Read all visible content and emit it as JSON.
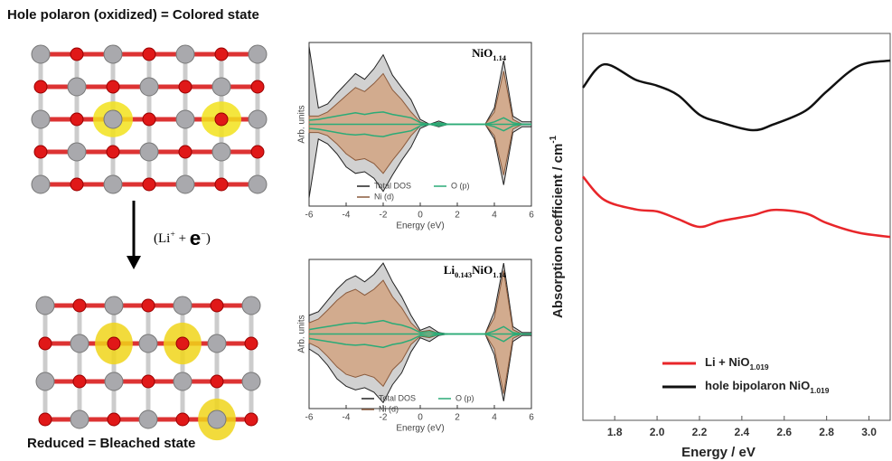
{
  "labels": {
    "top": "Hole polaron (oxidized) = Colored state",
    "bottom": "Reduced = Bleached state",
    "reaction": [
      {
        "text": "(Li"
      },
      {
        "text": "+",
        "sup": true
      },
      {
        "text": " + "
      },
      {
        "text": "e",
        "big": true
      },
      {
        "text": "−",
        "sup": true
      },
      {
        "text": ")"
      }
    ]
  },
  "chart_data": [
    {
      "type": "area",
      "title": [
        {
          "text": "NiO"
        },
        {
          "text": "1.14",
          "sub": true
        }
      ],
      "xlabel": "Energy (eV)",
      "ylabel": "Arb. units",
      "x": [
        -6,
        -5.5,
        -5,
        -4.5,
        -4,
        -3.5,
        -3,
        -2.5,
        -2,
        -1.5,
        -1,
        -0.5,
        0,
        0.5,
        1,
        1.5,
        2,
        2.5,
        3,
        3.5,
        4,
        4.5,
        5,
        5.5,
        6
      ],
      "xlim": [
        -6,
        6
      ],
      "xticks": [
        -6,
        -4,
        -2,
        0,
        2,
        4,
        6
      ],
      "ylim": [
        -1,
        1
      ],
      "series": [
        {
          "name": "Total DOS",
          "color": "#222222",
          "fill": "#c9c9c9",
          "values": [
            0.95,
            0.2,
            0.25,
            0.38,
            0.5,
            0.62,
            0.55,
            0.68,
            0.85,
            0.6,
            0.45,
            0.3,
            0.06,
            0,
            0.04,
            0,
            0,
            0,
            0,
            0,
            0.2,
            0.78,
            0.1,
            0.03,
            0.03
          ],
          "values_down": [
            -0.9,
            -0.18,
            -0.24,
            -0.36,
            -0.52,
            -0.6,
            -0.58,
            -0.66,
            -0.82,
            -0.62,
            -0.44,
            -0.28,
            -0.05,
            0,
            -0.03,
            0,
            0,
            0,
            0,
            0,
            -0.18,
            -0.74,
            -0.1,
            -0.03,
            -0.03
          ]
        },
        {
          "name": "Ni (d)",
          "color": "#8a5a3c",
          "fill": "#d2a582",
          "values": [
            0.1,
            0.1,
            0.15,
            0.25,
            0.35,
            0.45,
            0.4,
            0.5,
            0.62,
            0.42,
            0.3,
            0.15,
            0.03,
            0,
            0.01,
            0,
            0,
            0,
            0,
            0,
            0.15,
            0.65,
            0.06,
            0,
            0
          ],
          "values_down": [
            -0.1,
            -0.1,
            -0.14,
            -0.24,
            -0.36,
            -0.44,
            -0.42,
            -0.48,
            -0.6,
            -0.44,
            -0.3,
            -0.14,
            -0.02,
            0,
            -0.01,
            0,
            0,
            0,
            0,
            0,
            -0.14,
            -0.62,
            -0.06,
            0,
            0
          ]
        },
        {
          "name": "O (p)",
          "color": "#2bab77",
          "fill": "none",
          "values": [
            0.05,
            0.06,
            0.08,
            0.1,
            0.12,
            0.14,
            0.12,
            0.14,
            0.15,
            0.12,
            0.1,
            0.08,
            0.02,
            0,
            0.02,
            0,
            0,
            0,
            0,
            0,
            0.03,
            0.08,
            0.02,
            0,
            0
          ],
          "values_down": [
            -0.05,
            -0.06,
            -0.08,
            -0.1,
            -0.12,
            -0.13,
            -0.12,
            -0.14,
            -0.15,
            -0.12,
            -0.1,
            -0.08,
            -0.02,
            0,
            -0.02,
            0,
            0,
            0,
            0,
            0,
            -0.03,
            -0.08,
            -0.02,
            0,
            0
          ]
        }
      ]
    },
    {
      "type": "area",
      "title": [
        {
          "text": "Li"
        },
        {
          "text": "0.143",
          "sub": true
        },
        {
          "text": "NiO"
        },
        {
          "text": "1.14",
          "sub": true
        }
      ],
      "xlabel": "Energy (eV)",
      "ylabel": "Arb. units",
      "x": [
        -6,
        -5.5,
        -5,
        -4.5,
        -4,
        -3.5,
        -3,
        -2.5,
        -2,
        -1.5,
        -1,
        -0.5,
        0,
        0.5,
        1,
        1.5,
        2,
        2.5,
        3,
        3.5,
        4,
        4.5,
        5,
        5.5,
        6
      ],
      "xlim": [
        -6,
        6
      ],
      "xticks": [
        -6,
        -4,
        -2,
        0,
        2,
        4,
        6
      ],
      "ylim": [
        -1,
        1
      ],
      "series": [
        {
          "name": "Total DOS",
          "color": "#222222",
          "fill": "#c9c9c9",
          "values": [
            0.25,
            0.3,
            0.45,
            0.6,
            0.72,
            0.78,
            0.7,
            0.8,
            0.95,
            0.7,
            0.5,
            0.25,
            0.05,
            0.1,
            0.02,
            0,
            0,
            0,
            0,
            0,
            0.3,
            0.95,
            0.1,
            0.02,
            0.02
          ],
          "values_down": [
            -0.2,
            -0.28,
            -0.42,
            -0.6,
            -0.7,
            -0.75,
            -0.72,
            -0.78,
            -0.92,
            -0.68,
            -0.52,
            -0.24,
            -0.05,
            -0.1,
            -0.02,
            0,
            0,
            0,
            0,
            0,
            -0.28,
            -0.9,
            -0.1,
            -0.02,
            -0.02
          ]
        },
        {
          "name": "Ni (d)",
          "color": "#8a5a3c",
          "fill": "#d2a582",
          "values": [
            0.15,
            0.2,
            0.32,
            0.45,
            0.55,
            0.6,
            0.52,
            0.6,
            0.72,
            0.5,
            0.35,
            0.15,
            0.03,
            0.05,
            0.01,
            0,
            0,
            0,
            0,
            0,
            0.22,
            0.85,
            0.06,
            0,
            0
          ],
          "values_down": [
            -0.12,
            -0.18,
            -0.3,
            -0.44,
            -0.54,
            -0.58,
            -0.54,
            -0.58,
            -0.7,
            -0.48,
            -0.36,
            -0.14,
            -0.03,
            -0.05,
            -0.01,
            0,
            0,
            0,
            0,
            0,
            -0.2,
            -0.8,
            -0.06,
            0,
            0
          ]
        },
        {
          "name": "O (p)",
          "color": "#2bab77",
          "fill": "none",
          "values": [
            0.06,
            0.08,
            0.1,
            0.12,
            0.14,
            0.15,
            0.14,
            0.16,
            0.18,
            0.14,
            0.12,
            0.08,
            0.02,
            0.03,
            0.01,
            0,
            0,
            0,
            0,
            0,
            0.04,
            0.1,
            0.02,
            0,
            0
          ],
          "values_down": [
            -0.06,
            -0.08,
            -0.1,
            -0.12,
            -0.14,
            -0.15,
            -0.14,
            -0.16,
            -0.18,
            -0.14,
            -0.12,
            -0.08,
            -0.02,
            -0.03,
            -0.01,
            0,
            0,
            0,
            0,
            0,
            -0.04,
            -0.1,
            -0.02,
            0,
            0
          ]
        }
      ]
    },
    {
      "type": "line",
      "xlabel": "Energy / eV",
      "ylabel": "Absorption coefficient / cm",
      "ylabel_sup": "-1",
      "x": [
        1.65,
        1.75,
        1.9,
        2.0,
        2.1,
        2.2,
        2.3,
        2.45,
        2.55,
        2.7,
        2.8,
        2.95,
        3.1
      ],
      "xlim": [
        1.65,
        3.1
      ],
      "xticks": [
        1.8,
        {
          "value": 2,
          "label": "2.0"
        },
        2.2,
        2.4,
        2.6,
        2.8,
        {
          "value": 3,
          "label": "3.0"
        }
      ],
      "ylim": [
        0,
        100
      ],
      "series": [
        {
          "name": "Li + NiO",
          "name_sub": "1.019",
          "color": "#e8262a",
          "values": [
            63,
            57,
            54.5,
            54,
            52,
            50,
            51.5,
            53,
            54.4,
            53.5,
            51,
            48.5,
            47.4
          ]
        },
        {
          "name": "hole bipolaron NiO",
          "name_sub": "1.019",
          "color": "#111111",
          "values": [
            86,
            92,
            88,
            86.5,
            84,
            79,
            77,
            75,
            76.5,
            80,
            85,
            91.6,
            93
          ]
        }
      ]
    }
  ]
}
